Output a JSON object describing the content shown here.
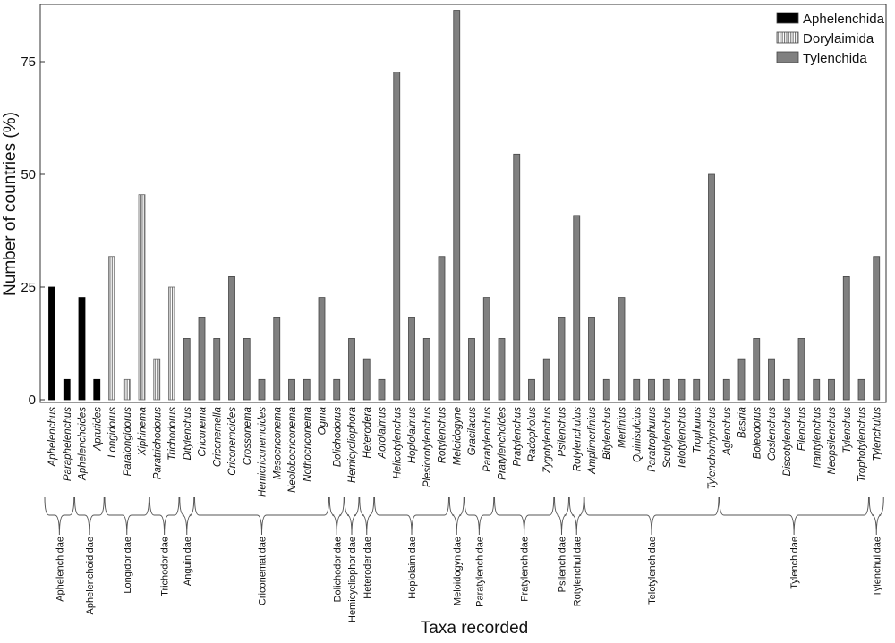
{
  "chart_data": {
    "type": "bar",
    "title": "",
    "xlabel": "Taxa recorded",
    "ylabel": "Number of countries (%)",
    "ylim": [
      0,
      88
    ],
    "yticks": [
      0,
      25,
      50,
      75
    ],
    "legend_position": "top-right",
    "series": [
      {
        "name": "Aphelenchida",
        "color": "#000000",
        "pattern": "solid"
      },
      {
        "name": "Dorylaimida",
        "color": "#ffffff",
        "pattern": "vertical-stripes"
      },
      {
        "name": "Tylenchida",
        "color": "#808080",
        "pattern": "solid"
      }
    ],
    "categories": [
      "Aphelenchus",
      "Paraphelenchus",
      "Aphelenchoides",
      "Aprutides",
      "Longidorus",
      "Paralongidorus",
      "Xiphinema",
      "Paratrichodorus",
      "Trichodorus",
      "Ditylenchus",
      "Criconema",
      "Criconemella",
      "Criconemoides",
      "Crossonema",
      "Hemicriconemoides",
      "Mesocriconema",
      "Neolobocriconema",
      "Nothocriconema",
      "Ogma",
      "Dolichodorus",
      "Hemicycliophora",
      "Heterodera",
      "Aorolaimus",
      "Helicotylenchus",
      "Hoplolaimus",
      "Plesiorotylenchus",
      "Rotylenchus",
      "Meloidogyne",
      "Gracilacus",
      "Paratylenchus",
      "Pratylenchoides",
      "Pratylenchus",
      "Radopholus",
      "Zygotylenchus",
      "Psilenchus",
      "Rotylenchulus",
      "Amplimerlinius",
      "Bitylenchus",
      "Merlinius",
      "Quinisulcius",
      "Paratrophurus",
      "Scutylenchus",
      "Telotylenchus",
      "Trophurus",
      "Tylenchorhynchus",
      "Aglenchus",
      "Basiria",
      "Boleodorus",
      "Coslenchus",
      "Discotylenchus",
      "Filenchus",
      "Irantylenchus",
      "Neopsilenchus",
      "Tylenchus",
      "Trophotylenchus",
      "Tylenchulus"
    ],
    "values": [
      25,
      4.5,
      22.7,
      4.5,
      31.8,
      4.5,
      45.5,
      9.1,
      25,
      13.6,
      18.2,
      13.6,
      27.3,
      13.6,
      4.5,
      18.2,
      4.5,
      4.5,
      22.7,
      4.5,
      13.6,
      9.1,
      4.5,
      72.7,
      18.2,
      13.6,
      31.8,
      86.4,
      13.6,
      22.7,
      13.6,
      54.5,
      4.5,
      9.1,
      18.2,
      40.9,
      18.2,
      4.5,
      22.7,
      4.5,
      4.5,
      4.5,
      4.5,
      4.5,
      50,
      4.5,
      9.1,
      13.6,
      9.1,
      4.5,
      13.6,
      4.5,
      4.5,
      27.3,
      4.5,
      31.8
    ],
    "order": [
      "Aphelenchida",
      "Aphelenchida",
      "Aphelenchida",
      "Aphelenchida",
      "Dorylaimida",
      "Dorylaimida",
      "Dorylaimida",
      "Dorylaimida",
      "Dorylaimida",
      "Tylenchida",
      "Tylenchida",
      "Tylenchida",
      "Tylenchida",
      "Tylenchida",
      "Tylenchida",
      "Tylenchida",
      "Tylenchida",
      "Tylenchida",
      "Tylenchida",
      "Tylenchida",
      "Tylenchida",
      "Tylenchida",
      "Tylenchida",
      "Tylenchida",
      "Tylenchida",
      "Tylenchida",
      "Tylenchida",
      "Tylenchida",
      "Tylenchida",
      "Tylenchida",
      "Tylenchida",
      "Tylenchida",
      "Tylenchida",
      "Tylenchida",
      "Tylenchida",
      "Tylenchida",
      "Tylenchida",
      "Tylenchida",
      "Tylenchida",
      "Tylenchida",
      "Tylenchida",
      "Tylenchida",
      "Tylenchida",
      "Tylenchida",
      "Tylenchida",
      "Tylenchida",
      "Tylenchida",
      "Tylenchida",
      "Tylenchida",
      "Tylenchida",
      "Tylenchida",
      "Tylenchida",
      "Tylenchida",
      "Tylenchida",
      "Tylenchida",
      "Tylenchida"
    ],
    "families": [
      {
        "name": "Aphelenchidae",
        "from": 0,
        "to": 1
      },
      {
        "name": "Aphelenchoididae",
        "from": 2,
        "to": 3
      },
      {
        "name": "Longidoridae",
        "from": 4,
        "to": 6
      },
      {
        "name": "Trichodoridae",
        "from": 7,
        "to": 8
      },
      {
        "name": "Anguinidae",
        "from": 9,
        "to": 9
      },
      {
        "name": "Criconematidae",
        "from": 10,
        "to": 18
      },
      {
        "name": "Dolichodoridae",
        "from": 19,
        "to": 19
      },
      {
        "name": "Hemicycliophoridae",
        "from": 20,
        "to": 20
      },
      {
        "name": "Heteroderidae",
        "from": 21,
        "to": 21
      },
      {
        "name": "Hoplolaimidae",
        "from": 22,
        "to": 26
      },
      {
        "name": "Meloidogynidae",
        "from": 27,
        "to": 27
      },
      {
        "name": "Paratylenchidae",
        "from": 28,
        "to": 29
      },
      {
        "name": "Pratylenchidae",
        "from": 30,
        "to": 33
      },
      {
        "name": "Psilenchidae",
        "from": 34,
        "to": 34
      },
      {
        "name": "Rotylenchulidae",
        "from": 35,
        "to": 35
      },
      {
        "name": "Telotylenchidae",
        "from": 36,
        "to": 44
      },
      {
        "name": "Tylenchidae",
        "from": 45,
        "to": 54
      },
      {
        "name": "Tylenchulidae",
        "from": 55,
        "to": 55
      }
    ]
  }
}
